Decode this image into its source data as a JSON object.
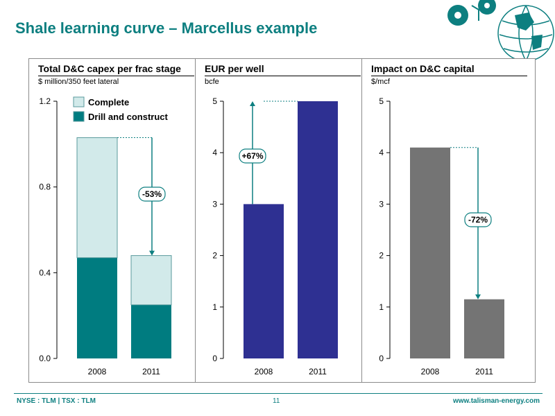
{
  "slide": {
    "title": "Shale learning curve – Marcellus example",
    "page_number": "11",
    "footer_left": "NYSE : TLM | TSX : TLM",
    "footer_right": "www.talisman-energy.com"
  },
  "colors": {
    "brand": "#0d7f80",
    "complete": "#d2eaea",
    "drill": "#007c80",
    "eur": "#2e3092",
    "capital": "#747474"
  },
  "chart_data": [
    {
      "type": "bar",
      "stacked": true,
      "title": "Total D&C capex per frac stage",
      "ylabel": "$ million/350 feet lateral",
      "categories": [
        "2008",
        "2011"
      ],
      "series": [
        {
          "name": "Drill and construct",
          "values": [
            0.47,
            0.25
          ]
        },
        {
          "name": "Complete",
          "values": [
            0.56,
            0.23
          ]
        }
      ],
      "ylim": [
        0,
        1.2
      ],
      "yticks": [
        "0.0",
        "0.4",
        "0.8",
        "1.2"
      ],
      "legend": "top-left",
      "annotation": "-53%"
    },
    {
      "type": "bar",
      "title": "EUR per well",
      "ylabel": "bcfe",
      "categories": [
        "2008",
        "2011"
      ],
      "values": [
        3,
        5
      ],
      "ylim": [
        0,
        5
      ],
      "yticks": [
        "0",
        "1",
        "2",
        "3",
        "4",
        "5"
      ],
      "annotation": "+67%"
    },
    {
      "type": "bar",
      "title": "Impact on D&C capital",
      "ylabel": "$/mcf",
      "categories": [
        "2008",
        "2011"
      ],
      "values": [
        4.1,
        1.15
      ],
      "ylim": [
        0,
        5
      ],
      "yticks": [
        "0",
        "1",
        "2",
        "3",
        "4",
        "5"
      ],
      "annotation": "-72%"
    }
  ]
}
